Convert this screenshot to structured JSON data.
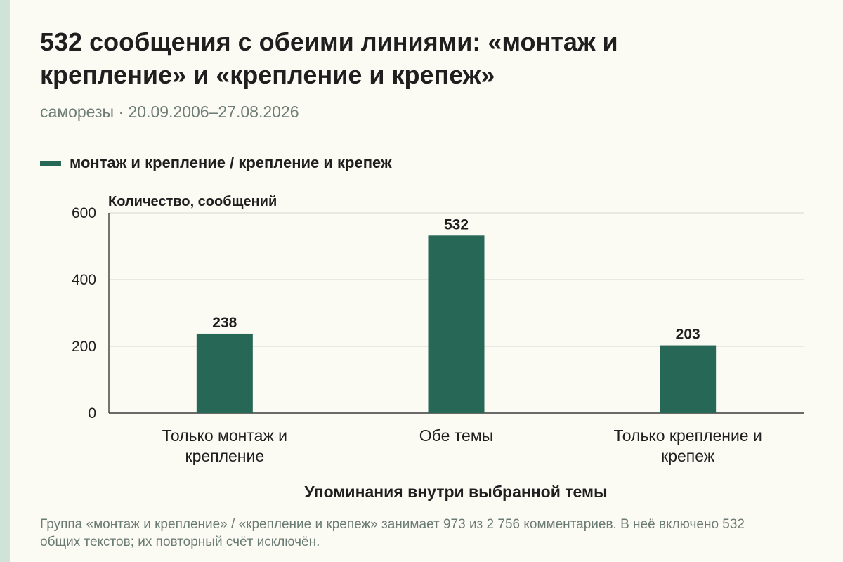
{
  "header": {
    "title": "532 сообщения с обеими линиями: «монтаж и крепление» и «крепление и крепеж»",
    "subtitle": "саморезы · 20.09.2006–27.08.2026"
  },
  "legend": {
    "label": "монтаж и крепление / крепление и крепеж",
    "color": "#276756"
  },
  "chart_data": {
    "type": "bar",
    "categories": [
      [
        "Только монтаж и",
        "крепление"
      ],
      [
        "Обе темы"
      ],
      [
        "Только крепление и",
        "крепеж"
      ]
    ],
    "series": [
      {
        "name": "монтаж и крепление / крепление и крепеж",
        "values": [
          238,
          532,
          203
        ]
      }
    ],
    "data_labels": [
      "238",
      "532",
      "203"
    ],
    "ylabel": "Количество, сообщений",
    "xlabel": "Упоминания внутри выбранной темы",
    "ylim": [
      0,
      600
    ],
    "yticks": [
      0,
      200,
      400,
      600
    ],
    "grid": true,
    "bar_color": "#276756"
  },
  "footnote": "Группа «монтаж и крепление» / «крепление и крепеж» занимает 973 из 2 756 комментариев. В неё включено 532 общих текстов; их повторный счёт исключён."
}
